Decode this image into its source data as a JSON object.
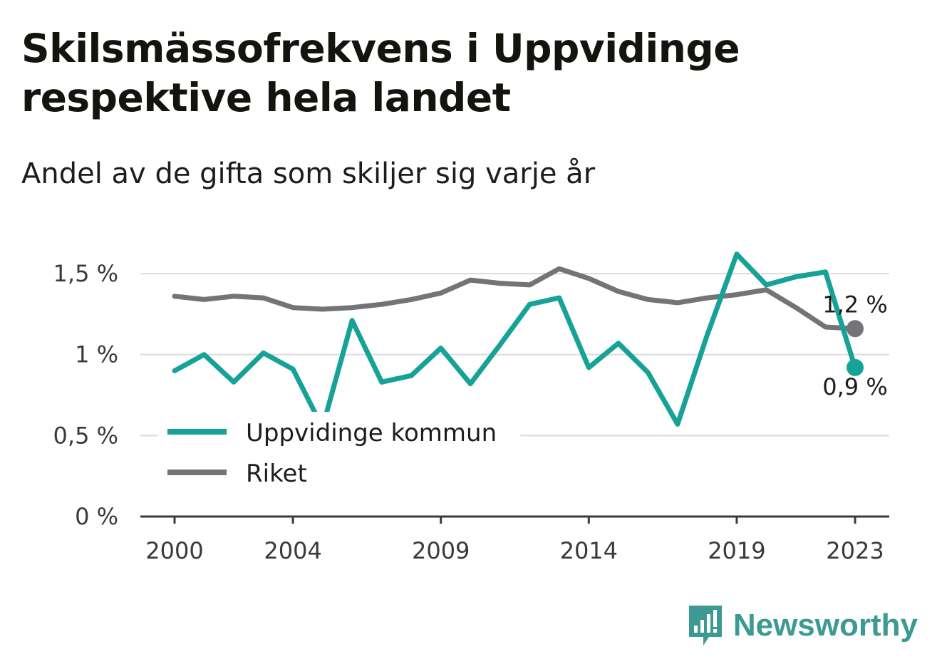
{
  "chart_data": {
    "type": "line",
    "title": "Skilsmässofrekvens i Uppvidinge respektive hela landet",
    "subtitle": "Andel av de gifta som skiljer sig varje år",
    "xlabel": "",
    "ylabel": "",
    "x": [
      2000,
      2001,
      2002,
      2003,
      2004,
      2005,
      2006,
      2007,
      2008,
      2009,
      2010,
      2011,
      2012,
      2013,
      2014,
      2015,
      2016,
      2017,
      2018,
      2019,
      2020,
      2021,
      2022,
      2023
    ],
    "x_ticks": [
      "2000",
      "2004",
      "2009",
      "2014",
      "2019",
      "2023"
    ],
    "y_ticks": [
      "0 %",
      "0,5 %",
      "1 %",
      "1,5 %"
    ],
    "ylim": [
      0,
      1.6
    ],
    "grid": true,
    "legend_position": "bottom-left",
    "series": [
      {
        "name": "Uppvidinge kommun",
        "color": "#16a297",
        "values": [
          0.9,
          1.0,
          0.83,
          1.01,
          0.91,
          0.55,
          1.21,
          0.83,
          0.87,
          1.04,
          0.82,
          1.06,
          1.31,
          1.35,
          0.92,
          1.07,
          0.89,
          0.57,
          1.12,
          1.62,
          1.43,
          1.48,
          1.51,
          0.92
        ],
        "end_label": "0,9 %"
      },
      {
        "name": "Riket",
        "color": "#737378",
        "values": [
          1.36,
          1.34,
          1.36,
          1.35,
          1.29,
          1.28,
          1.29,
          1.31,
          1.34,
          1.38,
          1.46,
          1.44,
          1.43,
          1.53,
          1.47,
          1.39,
          1.34,
          1.32,
          1.35,
          1.37,
          1.4,
          1.29,
          1.17,
          1.16
        ],
        "end_label": "1,2 %"
      }
    ]
  },
  "brand": {
    "name": "Newsworthy",
    "color": "#3c9a92"
  }
}
